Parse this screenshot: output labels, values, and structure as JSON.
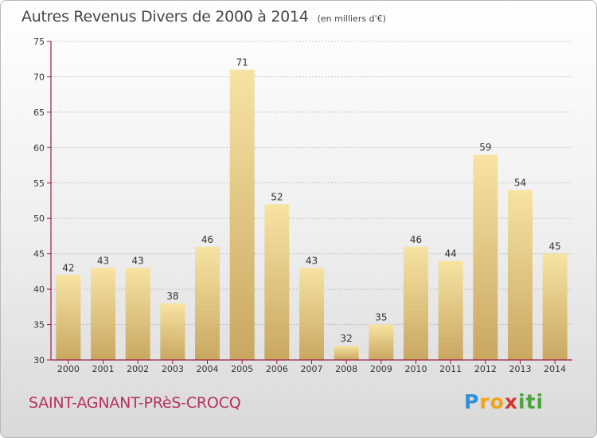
{
  "header": {
    "title": "Autres Revenus Divers de 2000 à 2014",
    "subtitle": "(en milliers d'€)"
  },
  "footer": {
    "commune": "SAINT-AGNANT-PRèS-CROCQ",
    "logo_letters": [
      "P",
      "r",
      "o",
      "x",
      "i",
      "t",
      "i"
    ],
    "logo_colors": [
      "#2e8fd6",
      "#f0a21a",
      "#f0a21a",
      "#d6322a",
      "#4da33b",
      "#4da33b",
      "#4da33b"
    ]
  },
  "colors": {
    "bar_light": "#f7e3a2",
    "bar_dark": "#c9a761",
    "axis": "#9b1c4a",
    "grid": "#b5b5b5",
    "text": "#333333"
  },
  "chart_data": {
    "type": "bar",
    "categories": [
      "2000",
      "2001",
      "2002",
      "2003",
      "2004",
      "2005",
      "2006",
      "2007",
      "2008",
      "2009",
      "2010",
      "2011",
      "2012",
      "2013",
      "2014"
    ],
    "values": [
      42,
      43,
      43,
      38,
      46,
      71,
      52,
      43,
      32,
      35,
      46,
      44,
      59,
      54,
      45
    ],
    "ylim": [
      30,
      75
    ],
    "yticks": [
      30,
      35,
      40,
      45,
      50,
      55,
      60,
      65,
      70,
      75
    ],
    "grid": true,
    "legend": "none"
  }
}
